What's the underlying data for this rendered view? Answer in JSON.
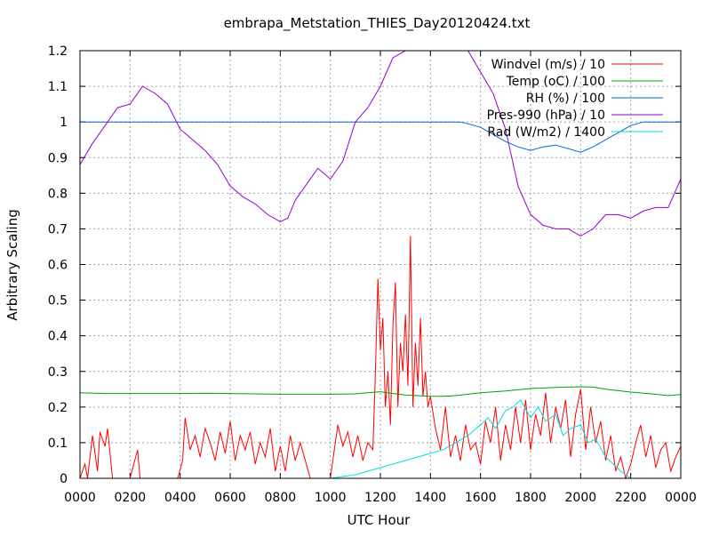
{
  "chart_data": {
    "type": "line",
    "title": "embrapa_Metstation_THIES_Day20120424.txt",
    "xlabel": "UTC Hour",
    "ylabel": "Arbitrary Scaling",
    "xlim": [
      0,
      24
    ],
    "ylim": [
      0,
      1.2
    ],
    "grid": true,
    "legend_position": "top-right",
    "x_ticks": [
      {
        "v": 0,
        "label": "0000"
      },
      {
        "v": 2,
        "label": "0200"
      },
      {
        "v": 4,
        "label": "0400"
      },
      {
        "v": 6,
        "label": "0600"
      },
      {
        "v": 8,
        "label": "0800"
      },
      {
        "v": 10,
        "label": "1000"
      },
      {
        "v": 12,
        "label": "1200"
      },
      {
        "v": 14,
        "label": "1400"
      },
      {
        "v": 16,
        "label": "1600"
      },
      {
        "v": 18,
        "label": "1800"
      },
      {
        "v": 20,
        "label": "2000"
      },
      {
        "v": 22,
        "label": "2200"
      },
      {
        "v": 24,
        "label": "0000"
      }
    ],
    "y_ticks": [
      {
        "v": 0,
        "label": "0"
      },
      {
        "v": 0.1,
        "label": "0.1"
      },
      {
        "v": 0.2,
        "label": "0.2"
      },
      {
        "v": 0.3,
        "label": "0.3"
      },
      {
        "v": 0.4,
        "label": "0.4"
      },
      {
        "v": 0.5,
        "label": "0.5"
      },
      {
        "v": 0.6,
        "label": "0.6"
      },
      {
        "v": 0.7,
        "label": "0.7"
      },
      {
        "v": 0.8,
        "label": "0.8"
      },
      {
        "v": 0.9,
        "label": "0.9"
      },
      {
        "v": 1.0,
        "label": "1"
      },
      {
        "v": 1.1,
        "label": "1.1"
      },
      {
        "v": 1.2,
        "label": "1.2"
      }
    ],
    "series": [
      {
        "name": "Windvel (m/s) / 10",
        "color": "#ff0000",
        "x": [
          0,
          0.2,
          0.3,
          0.5,
          0.7,
          0.8,
          1.0,
          1.1,
          1.3,
          1.4,
          1.6,
          2.0,
          2.3,
          2.4,
          2.6,
          3.0,
          3.6,
          3.9,
          4.1,
          4.2,
          4.4,
          4.6,
          4.8,
          5.0,
          5.2,
          5.4,
          5.6,
          5.8,
          6.0,
          6.2,
          6.4,
          6.6,
          6.8,
          7.0,
          7.2,
          7.4,
          7.6,
          7.8,
          8.0,
          8.2,
          8.4,
          8.6,
          8.8,
          9.2,
          9.6,
          10.0,
          10.3,
          10.5,
          10.7,
          10.9,
          11.1,
          11.3,
          11.5,
          11.7,
          11.8,
          11.9,
          12.0,
          12.1,
          12.2,
          12.3,
          12.4,
          12.5,
          12.6,
          12.7,
          12.8,
          12.9,
          13.0,
          13.1,
          13.2,
          13.3,
          13.4,
          13.5,
          13.6,
          13.7,
          13.8,
          13.9,
          14.0,
          14.2,
          14.4,
          14.6,
          14.8,
          15.0,
          15.2,
          15.4,
          15.6,
          15.8,
          16.0,
          16.2,
          16.4,
          16.6,
          16.8,
          17.0,
          17.2,
          17.4,
          17.6,
          17.8,
          18.0,
          18.2,
          18.4,
          18.6,
          18.8,
          19.0,
          19.2,
          19.4,
          19.6,
          19.8,
          20.0,
          20.2,
          20.4,
          20.6,
          20.8,
          21.0,
          21.2,
          21.4,
          21.6,
          21.8,
          22.0,
          22.2,
          22.4,
          22.6,
          22.8,
          23.0,
          23.2,
          23.4,
          23.6,
          23.8,
          24.0
        ],
        "y": [
          0,
          0.04,
          0,
          0.12,
          0.02,
          0.13,
          0.09,
          0.14,
          0,
          0,
          0,
          0,
          0.08,
          0,
          0,
          0,
          0,
          0,
          0.05,
          0.17,
          0.08,
          0.12,
          0.06,
          0.14,
          0.1,
          0.05,
          0.13,
          0.07,
          0.16,
          0.05,
          0.12,
          0.08,
          0.13,
          0.04,
          0.1,
          0.06,
          0.14,
          0.02,
          0.09,
          0.02,
          0.12,
          0.05,
          0.1,
          0,
          0,
          0,
          0.15,
          0.09,
          0.13,
          0.06,
          0.12,
          0.05,
          0.1,
          0.08,
          0.3,
          0.56,
          0.36,
          0.45,
          0.2,
          0.3,
          0.15,
          0.43,
          0.55,
          0.2,
          0.38,
          0.3,
          0.46,
          0.26,
          0.68,
          0.2,
          0.38,
          0.26,
          0.45,
          0.23,
          0.3,
          0.2,
          0.23,
          0.14,
          0.08,
          0.2,
          0.06,
          0.12,
          0.05,
          0.15,
          0.08,
          0.1,
          0.04,
          0.16,
          0.1,
          0.2,
          0.05,
          0.15,
          0.08,
          0.2,
          0.1,
          0.22,
          0.08,
          0.18,
          0.12,
          0.24,
          0.1,
          0.2,
          0.14,
          0.22,
          0.06,
          0.18,
          0.25,
          0.08,
          0.2,
          0.1,
          0.16,
          0.05,
          0.12,
          0.02,
          0.06,
          0,
          0.04,
          0.1,
          0.15,
          0.06,
          0.12,
          0.03,
          0.08,
          0.1,
          0.02,
          0.06,
          0.09
        ]
      },
      {
        "name": "Temp (oC) / 100",
        "color": "#00a000",
        "x": [
          0,
          1,
          2,
          3,
          4,
          5,
          6,
          7,
          8,
          9,
          10,
          11,
          11.5,
          12,
          12.5,
          13,
          13.5,
          14,
          14.5,
          15,
          15.5,
          16,
          17,
          18,
          19,
          20,
          20.5,
          21,
          22,
          23,
          23.5,
          24
        ],
        "y": [
          0.24,
          0.238,
          0.238,
          0.238,
          0.238,
          0.239,
          0.238,
          0.237,
          0.236,
          0.236,
          0.236,
          0.237,
          0.24,
          0.243,
          0.238,
          0.234,
          0.232,
          0.23,
          0.23,
          0.232,
          0.236,
          0.24,
          0.245,
          0.252,
          0.255,
          0.257,
          0.256,
          0.25,
          0.242,
          0.236,
          0.232,
          0.235
        ]
      },
      {
        "name": "RH (%) / 100",
        "color": "#0066cc",
        "x": [
          0,
          15.2,
          15.5,
          16,
          16.5,
          17,
          17.5,
          18,
          18.5,
          19,
          19.5,
          20,
          20.5,
          21,
          21.5,
          22,
          22.5,
          23,
          24
        ],
        "y": [
          1.0,
          1.0,
          0.995,
          0.985,
          0.965,
          0.945,
          0.93,
          0.92,
          0.93,
          0.935,
          0.925,
          0.915,
          0.93,
          0.95,
          0.97,
          0.99,
          1.0,
          1.0,
          1.0
        ]
      },
      {
        "name": "Pres-990 (hPa) / 10",
        "color": "#9400d3",
        "x": [
          0,
          0.5,
          1.0,
          1.5,
          2.0,
          2.5,
          3.0,
          3.5,
          4.0,
          4.5,
          5.0,
          5.5,
          6.0,
          6.5,
          7.0,
          7.5,
          8.0,
          8.3,
          8.6,
          9.0,
          9.5,
          10.0,
          10.5,
          11.0,
          11.5,
          12.0,
          12.5,
          13.0,
          13.5,
          14.0,
          14.5,
          15.0,
          15.5,
          16.0,
          16.5,
          17.0,
          17.5,
          18.0,
          18.5,
          19.0,
          19.5,
          20.0,
          20.5,
          21.0,
          21.5,
          22.0,
          22.5,
          23.0,
          23.5,
          24.0
        ],
        "y": [
          0.88,
          0.94,
          0.99,
          1.04,
          1.05,
          1.1,
          1.08,
          1.05,
          0.98,
          0.95,
          0.92,
          0.88,
          0.82,
          0.79,
          0.77,
          0.74,
          0.72,
          0.73,
          0.78,
          0.82,
          0.87,
          0.84,
          0.89,
          1.0,
          1.04,
          1.1,
          1.18,
          1.2,
          1.2,
          1.2,
          1.2,
          1.2,
          1.2,
          1.14,
          1.08,
          0.98,
          0.82,
          0.74,
          0.71,
          0.7,
          0.7,
          0.68,
          0.7,
          0.74,
          0.74,
          0.73,
          0.75,
          0.76,
          0.76,
          0.84
        ]
      },
      {
        "name": "Rad (W/m2) / 1400",
        "color": "#00dddd",
        "x": [
          10,
          10.5,
          11,
          11.5,
          12,
          12.5,
          13,
          13.5,
          14,
          14.5,
          15,
          15.5,
          16,
          16.3,
          16.6,
          17,
          17.3,
          17.6,
          18,
          18.3,
          18.6,
          19,
          19.3,
          19.6,
          20,
          20.3,
          20.6,
          21,
          21.3,
          21.6,
          22
        ],
        "y": [
          0,
          0.005,
          0.01,
          0.02,
          0.03,
          0.04,
          0.05,
          0.06,
          0.07,
          0.08,
          0.1,
          0.12,
          0.15,
          0.17,
          0.14,
          0.19,
          0.2,
          0.22,
          0.17,
          0.2,
          0.16,
          0.18,
          0.12,
          0.14,
          0.15,
          0.1,
          0.11,
          0.06,
          0.04,
          0.02,
          0
        ]
      }
    ]
  }
}
